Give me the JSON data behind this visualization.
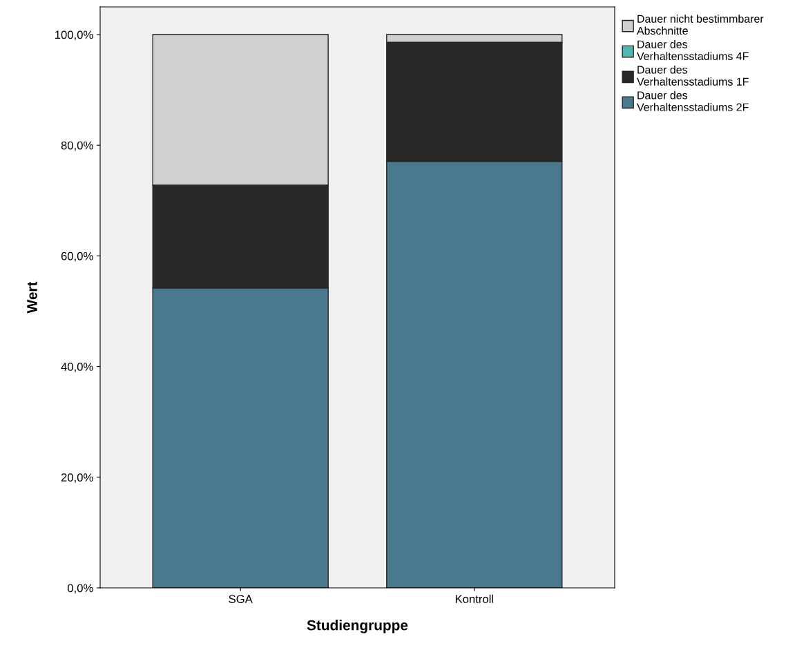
{
  "chart_data": {
    "type": "bar",
    "stacked": true,
    "xlabel": "Studiengruppe",
    "ylabel": "Wert",
    "categories": [
      "SGA",
      "Kontroll"
    ],
    "series": [
      {
        "name": "Dauer des Verhaltensstadiums 2F",
        "color": "#4a788c",
        "values": [
          54.2,
          77.1
        ]
      },
      {
        "name": "Dauer des Verhaltensstadiums 1F",
        "color": "#282828",
        "values": [
          18.6,
          21.5
        ]
      },
      {
        "name": "Dauer des Verhaltensstadiums 4F",
        "color": "#4fb8b0",
        "values": [
          0,
          0
        ]
      },
      {
        "name": "Dauer nicht bestimmbarer Abschnitte",
        "color": "#d0d0d0",
        "values": [
          27.2,
          1.4
        ]
      }
    ],
    "ylim": [
      0,
      105
    ],
    "yticks": [
      {
        "value": 0,
        "label": "0,0%"
      },
      {
        "value": 20,
        "label": "20,0%"
      },
      {
        "value": 40,
        "label": "40,0%"
      },
      {
        "value": 60,
        "label": "60,0%"
      },
      {
        "value": 80,
        "label": "80,0%"
      },
      {
        "value": 100,
        "label": "100,0%"
      }
    ],
    "legend": "top right",
    "grid": false
  }
}
